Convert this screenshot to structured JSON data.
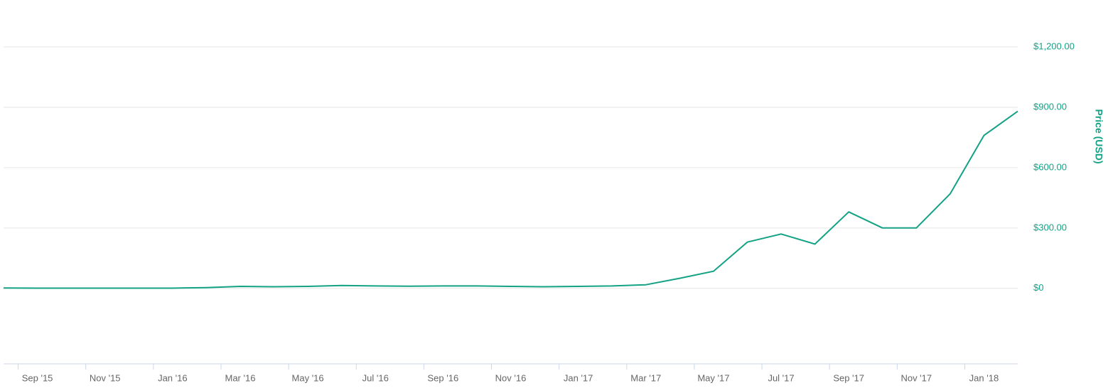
{
  "chart_data": {
    "type": "line",
    "y_axis_label": "Price (USD)",
    "x": [
      "2015-08",
      "2015-09",
      "2015-10",
      "2015-11",
      "2015-12",
      "2016-01",
      "2016-02",
      "2016-03",
      "2016-04",
      "2016-05",
      "2016-06",
      "2016-07",
      "2016-08",
      "2016-09",
      "2016-10",
      "2016-11",
      "2016-12",
      "2017-01",
      "2017-02",
      "2017-03",
      "2017-04",
      "2017-05",
      "2017-06",
      "2017-07",
      "2017-08",
      "2017-09",
      "2017-10",
      "2017-11",
      "2017-12",
      "2018-01",
      "2018-02"
    ],
    "series": [
      {
        "name": "Price (USD)",
        "color": "#13a285",
        "values": [
          2,
          1,
          1,
          1,
          1,
          1,
          4,
          10,
          8,
          10,
          14,
          12,
          11,
          12,
          12,
          10,
          8,
          10,
          12,
          18,
          50,
          85,
          230,
          270,
          220,
          380,
          300,
          300,
          470,
          760,
          880
        ]
      }
    ],
    "xlim": [
      "2015-08",
      "2018-02"
    ],
    "xticks": [
      {
        "value": "2015-09",
        "label": "Sep '15"
      },
      {
        "value": "2015-11",
        "label": "Nov '15"
      },
      {
        "value": "2016-01",
        "label": "Jan '16"
      },
      {
        "value": "2016-03",
        "label": "Mar '16"
      },
      {
        "value": "2016-05",
        "label": "May '16"
      },
      {
        "value": "2016-07",
        "label": "Jul '16"
      },
      {
        "value": "2016-09",
        "label": "Sep '16"
      },
      {
        "value": "2016-11",
        "label": "Nov '16"
      },
      {
        "value": "2017-01",
        "label": "Jan '17"
      },
      {
        "value": "2017-03",
        "label": "Mar '17"
      },
      {
        "value": "2017-05",
        "label": "May '17"
      },
      {
        "value": "2017-07",
        "label": "Jul '17"
      },
      {
        "value": "2017-09",
        "label": "Sep '17"
      },
      {
        "value": "2017-11",
        "label": "Nov '17"
      },
      {
        "value": "2018-01",
        "label": "Jan '18"
      }
    ],
    "ylim": [
      -375,
      1433
    ],
    "yticks": [
      {
        "value": 0,
        "label": "$0"
      },
      {
        "value": 300,
        "label": "$300.00"
      },
      {
        "value": 600,
        "label": "$600.00"
      },
      {
        "value": 900,
        "label": "$900.00"
      },
      {
        "value": 1200,
        "label": "$1,200.00"
      }
    ],
    "grid": true
  }
}
